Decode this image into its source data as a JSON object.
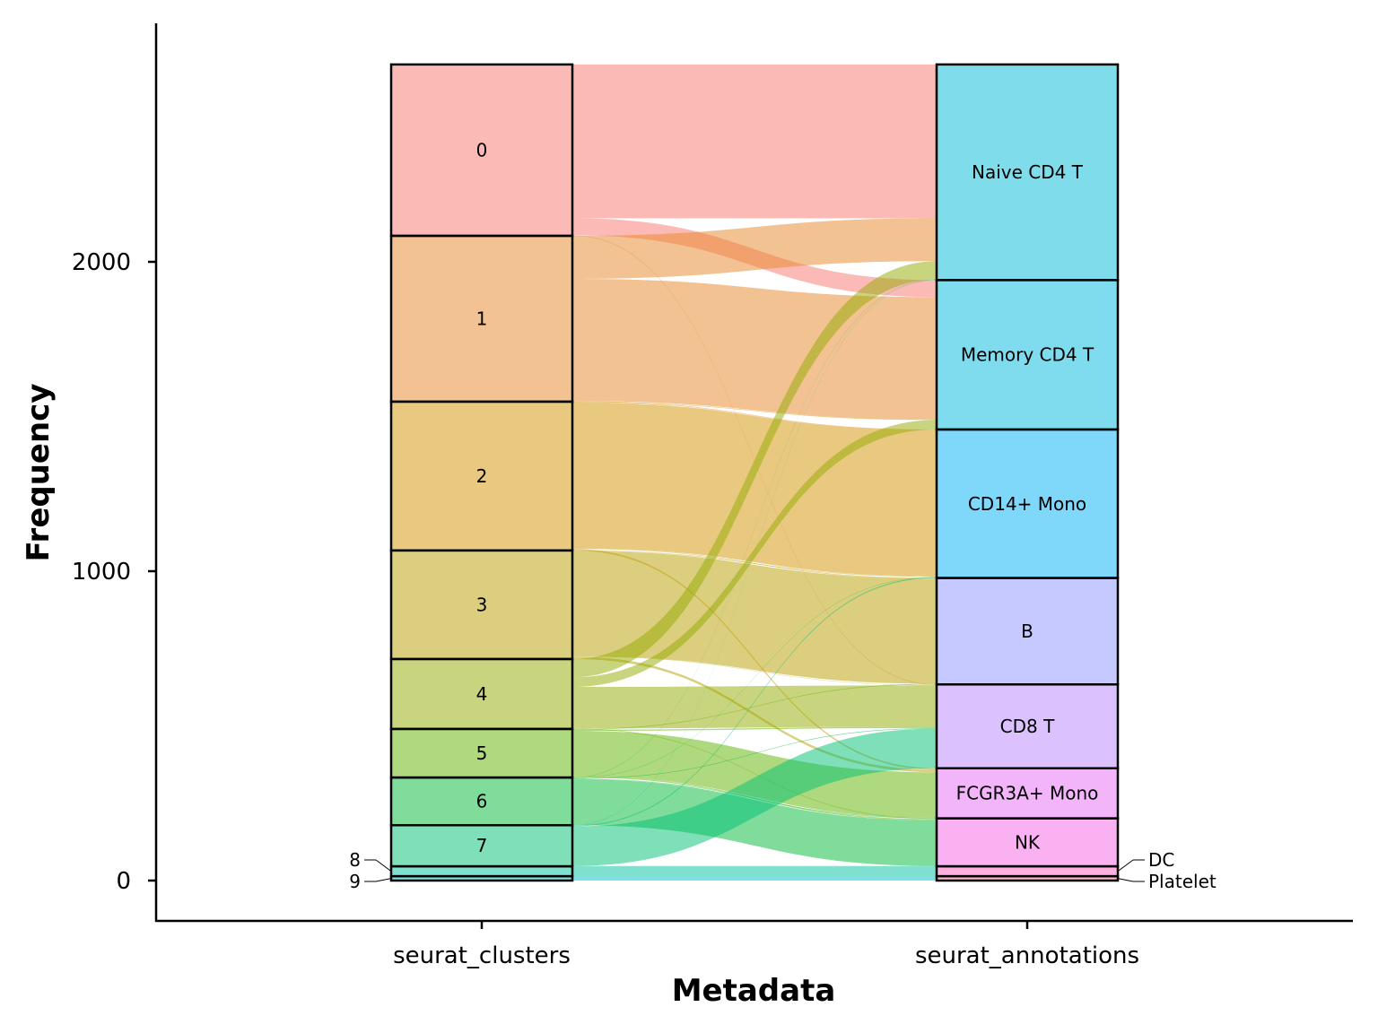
{
  "chart_data": {
    "type": "alluvial",
    "title": "",
    "xlabel": "Metadata",
    "ylabel": "Frequency",
    "ylim": [
      0,
      2638
    ],
    "yticks": [
      0,
      1000,
      2000
    ],
    "axes": [
      "seurat_clusters",
      "seurat_annotations"
    ],
    "grid": false,
    "legend": "none",
    "strata": {
      "seurat_clusters": [
        {
          "label": "0",
          "value": 554,
          "color": "#F8766D"
        },
        {
          "label": "1",
          "value": 536,
          "color": "#E88526"
        },
        {
          "label": "2",
          "value": 481,
          "color": "#D39200"
        },
        {
          "label": "3",
          "value": 351,
          "color": "#B79F00"
        },
        {
          "label": "4",
          "value": 226,
          "color": "#93AA00"
        },
        {
          "label": "5",
          "value": 157,
          "color": "#5EB300"
        },
        {
          "label": "6",
          "value": 154,
          "color": "#00BA38"
        },
        {
          "label": "7",
          "value": 133,
          "color": "#00BF74"
        },
        {
          "label": "8",
          "value": 32,
          "color": "#00C19F"
        },
        {
          "label": "9",
          "value": 14,
          "color": "#00BFC4"
        }
      ],
      "seurat_annotations": [
        {
          "label": "Naive CD4 T",
          "value": 697,
          "color": "#00BCD8"
        },
        {
          "label": "Memory CD4 T",
          "value": 483,
          "color": "#00BAE0"
        },
        {
          "label": "CD14+ Mono",
          "value": 480,
          "color": "#00B0F6"
        },
        {
          "label": "B",
          "value": 344,
          "color": "#8B93FF"
        },
        {
          "label": "CD8 T",
          "value": 271,
          "color": "#B983FF"
        },
        {
          "label": "FCGR3A+ Mono",
          "value": 162,
          "color": "#E76BF3"
        },
        {
          "label": "NK",
          "value": 155,
          "color": "#F564E3"
        },
        {
          "label": "DC",
          "value": 32,
          "color": "#FF61C3"
        },
        {
          "label": "Platelet",
          "value": 14,
          "color": "#FF67A4"
        }
      ]
    },
    "flows": [
      {
        "from": "0",
        "to": "Naive CD4 T",
        "value": 497
      },
      {
        "from": "0",
        "to": "Memory CD4 T",
        "value": 55
      },
      {
        "from": "0",
        "to": "CD8 T",
        "value": 2
      },
      {
        "from": "1",
        "to": "Naive CD4 T",
        "value": 139
      },
      {
        "from": "1",
        "to": "Memory CD4 T",
        "value": 395
      },
      {
        "from": "1",
        "to": "CD14+ Mono",
        "value": 2
      },
      {
        "from": "2",
        "to": "Memory CD4 T",
        "value": 2
      },
      {
        "from": "2",
        "to": "CD14+ Mono",
        "value": 472
      },
      {
        "from": "2",
        "to": "B",
        "value": 2
      },
      {
        "from": "2",
        "to": "FCGR3A+ Mono",
        "value": 5
      },
      {
        "from": "3",
        "to": "CD14+ Mono",
        "value": 2
      },
      {
        "from": "3",
        "to": "B",
        "value": 340
      },
      {
        "from": "3",
        "to": "CD8 T",
        "value": 1
      },
      {
        "from": "3",
        "to": "FCGR3A+ Mono",
        "value": 8
      },
      {
        "from": "4",
        "to": "Naive CD4 T",
        "value": 59
      },
      {
        "from": "4",
        "to": "Memory CD4 T",
        "value": 31
      },
      {
        "from": "4",
        "to": "CD8 T",
        "value": 134
      },
      {
        "from": "4",
        "to": "NK",
        "value": 2
      },
      {
        "from": "5",
        "to": "B",
        "value": 2
      },
      {
        "from": "5",
        "to": "CD8 T",
        "value": 4
      },
      {
        "from": "5",
        "to": "FCGR3A+ Mono",
        "value": 147
      },
      {
        "from": "5",
        "to": "NK",
        "value": 4
      },
      {
        "from": "6",
        "to": "Naive CD4 T",
        "value": 1
      },
      {
        "from": "6",
        "to": "CD14+ Mono",
        "value": 1
      },
      {
        "from": "6",
        "to": "CD8 T",
        "value": 2
      },
      {
        "from": "6",
        "to": "FCGR3A+ Mono",
        "value": 2
      },
      {
        "from": "6",
        "to": "NK",
        "value": 148
      },
      {
        "from": "7",
        "to": "Naive CD4 T",
        "value": 1
      },
      {
        "from": "7",
        "to": "CD14+ Mono",
        "value": 3
      },
      {
        "from": "7",
        "to": "B",
        "value": 0
      },
      {
        "from": "7",
        "to": "CD8 T",
        "value": 128
      },
      {
        "from": "7",
        "to": "NK",
        "value": 1
      },
      {
        "from": "8",
        "to": "DC",
        "value": 32
      },
      {
        "from": "9",
        "to": "Platelet",
        "value": 14
      }
    ]
  }
}
